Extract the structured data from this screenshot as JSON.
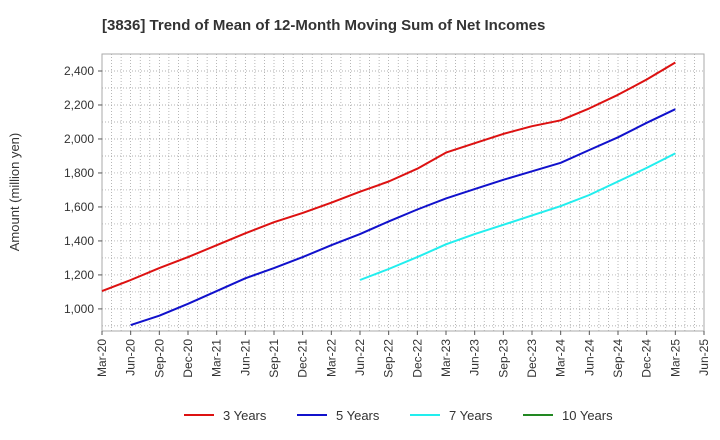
{
  "chart_data": {
    "type": "line",
    "title": "[3836]  Trend of Mean of 12-Month Moving Sum of Net Incomes",
    "ylabel": "Amount (million yen)",
    "xlabel": "",
    "ylim": [
      870,
      2500
    ],
    "yticks": [
      1000,
      1200,
      1400,
      1600,
      1800,
      2000,
      2200,
      2400
    ],
    "ytick_labels": [
      "1,000",
      "1,200",
      "1,400",
      "1,600",
      "1,800",
      "2,000",
      "2,200",
      "2,400"
    ],
    "x_tick_labels": [
      "Mar-20",
      "Jun-20",
      "Sep-20",
      "Dec-20",
      "Mar-21",
      "Jun-21",
      "Sep-21",
      "Dec-21",
      "Mar-22",
      "Jun-22",
      "Sep-22",
      "Dec-22",
      "Mar-23",
      "Jun-23",
      "Sep-23",
      "Dec-23",
      "Mar-24",
      "Jun-24",
      "Sep-24",
      "Dec-24",
      "Mar-25",
      "Jun-25"
    ],
    "grid": true,
    "legend_position": "bottom",
    "series": [
      {
        "name": "3 Years",
        "color": "#dd1111",
        "start": "Mar-20",
        "values": [
          1105,
          1170,
          1240,
          1305,
          1375,
          1445,
          1510,
          1565,
          1625,
          1690,
          1750,
          1825,
          1920,
          1975,
          2030,
          2075,
          2110,
          2180,
          2260,
          2350,
          2450
        ]
      },
      {
        "name": "5 Years",
        "color": "#1111cc",
        "start": "Jun-20",
        "values": [
          905,
          960,
          1030,
          1105,
          1180,
          1240,
          1305,
          1375,
          1440,
          1515,
          1585,
          1650,
          1705,
          1760,
          1810,
          1860,
          1935,
          2010,
          2095,
          2175
        ]
      },
      {
        "name": "7 Years",
        "color": "#22eeee",
        "start": "Jun-22",
        "values": [
          1170,
          1235,
          1305,
          1380,
          1440,
          1495,
          1550,
          1605,
          1670,
          1750,
          1830,
          1915
        ]
      },
      {
        "name": "10 Years",
        "color": "#228822",
        "start": "Mar-25",
        "values": []
      }
    ]
  }
}
